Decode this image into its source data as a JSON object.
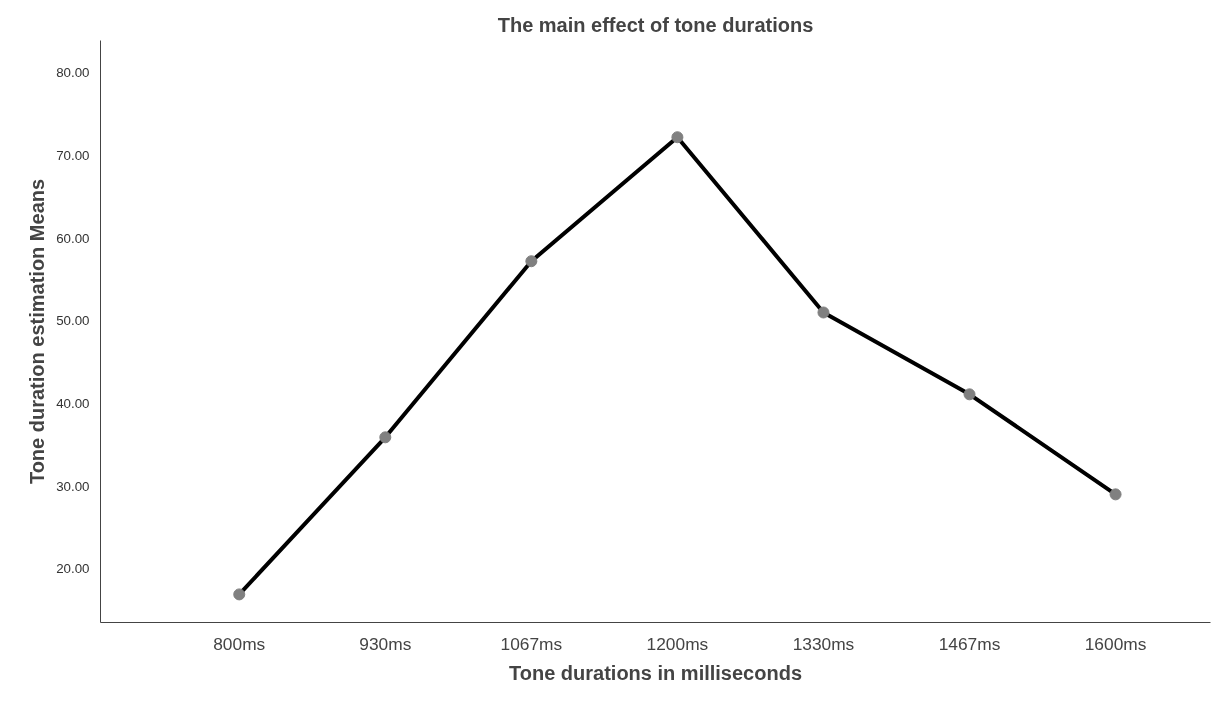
{
  "chart_data": {
    "type": "line",
    "title": "The main effect of tone durations",
    "xlabel": "Tone durations in milliseconds",
    "ylabel": "Tone duration estimation Means",
    "categories": [
      "800ms",
      "930ms",
      "1067ms",
      "1200ms",
      "1330ms",
      "1467ms",
      "1600ms"
    ],
    "series": [
      {
        "color": "#000000",
        "values": [
          16.9,
          35.9,
          57.2,
          72.2,
          51.0,
          41.1,
          29.0
        ]
      }
    ],
    "ylim": [
      13.5,
      83.9
    ],
    "yticks": [
      {
        "value": 20,
        "label": "20.00"
      },
      {
        "value": 30,
        "label": "30.00"
      },
      {
        "value": 40,
        "label": "40.00"
      },
      {
        "value": 50,
        "label": "50.00"
      },
      {
        "value": 60,
        "label": "60.00"
      },
      {
        "value": 70,
        "label": "70.00"
      },
      {
        "value": 80,
        "label": "80.00"
      }
    ],
    "marker": "circle",
    "grid": false
  }
}
